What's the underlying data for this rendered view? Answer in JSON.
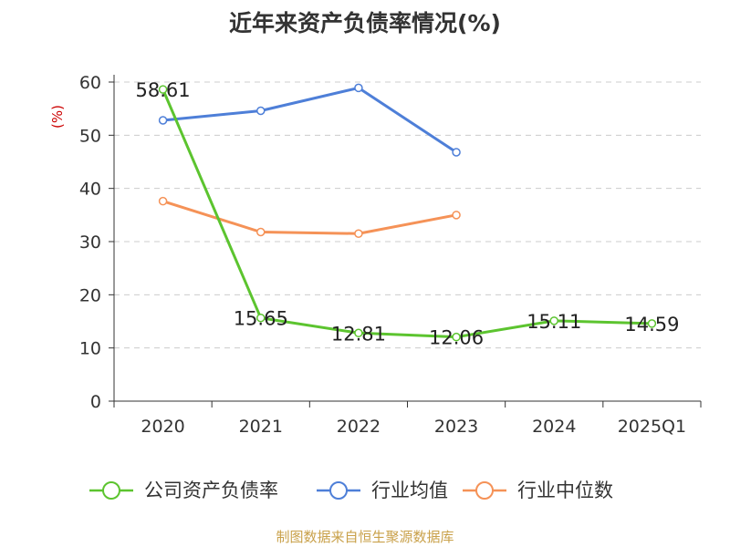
{
  "chart_data": {
    "type": "line",
    "title": "近年来资产负债率情况(%)",
    "ylabel": "(%)",
    "xlabel": "",
    "categories": [
      "2020",
      "2021",
      "2022",
      "2023",
      "2024",
      "2025Q1"
    ],
    "ylim": [
      0,
      60
    ],
    "yticks": [
      0,
      10,
      20,
      30,
      40,
      50,
      60
    ],
    "grid": true,
    "legend_position": "bottom",
    "series": [
      {
        "name": "公司资产负债率",
        "color": "#5cc42f",
        "values": [
          58.61,
          15.65,
          12.81,
          12.06,
          15.11,
          14.59
        ],
        "data_labels": [
          "58.61",
          "15.65",
          "12.81",
          "12.06",
          "15.11",
          "14.59"
        ]
      },
      {
        "name": "行业均值",
        "color": "#4e7fd8",
        "values": [
          52.8,
          54.6,
          58.9,
          46.8,
          null,
          null
        ]
      },
      {
        "name": "行业中位数",
        "color": "#f59257",
        "values": [
          37.6,
          31.8,
          31.5,
          35.0,
          null,
          null
        ]
      }
    ]
  },
  "source": "制图数据来自恒生聚源数据库"
}
